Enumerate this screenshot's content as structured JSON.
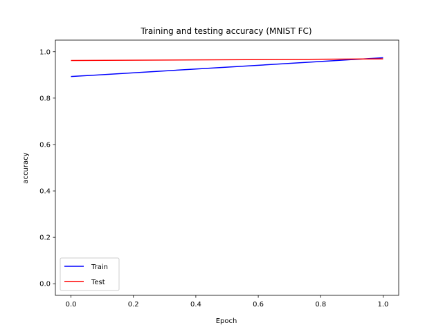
{
  "chart_data": {
    "type": "line",
    "title": "Training and testing accuracy (MNIST FC)",
    "xlabel": "Epoch",
    "ylabel": "accuracy",
    "x": [
      0,
      1
    ],
    "xlim": [
      -0.05,
      1.05
    ],
    "ylim": [
      -0.05,
      1.05
    ],
    "xticks": [
      "0.0",
      "0.2",
      "0.4",
      "0.6",
      "0.8",
      "1.0"
    ],
    "yticks": [
      "0.0",
      "0.2",
      "0.4",
      "0.6",
      "0.8",
      "1.0"
    ],
    "grid": false,
    "legend_position": "lower-left",
    "series": [
      {
        "name": "Train",
        "color": "#0000ff",
        "values": [
          0.893,
          0.974
        ]
      },
      {
        "name": "Test",
        "color": "#ff0000",
        "values": [
          0.962,
          0.969
        ]
      }
    ]
  }
}
